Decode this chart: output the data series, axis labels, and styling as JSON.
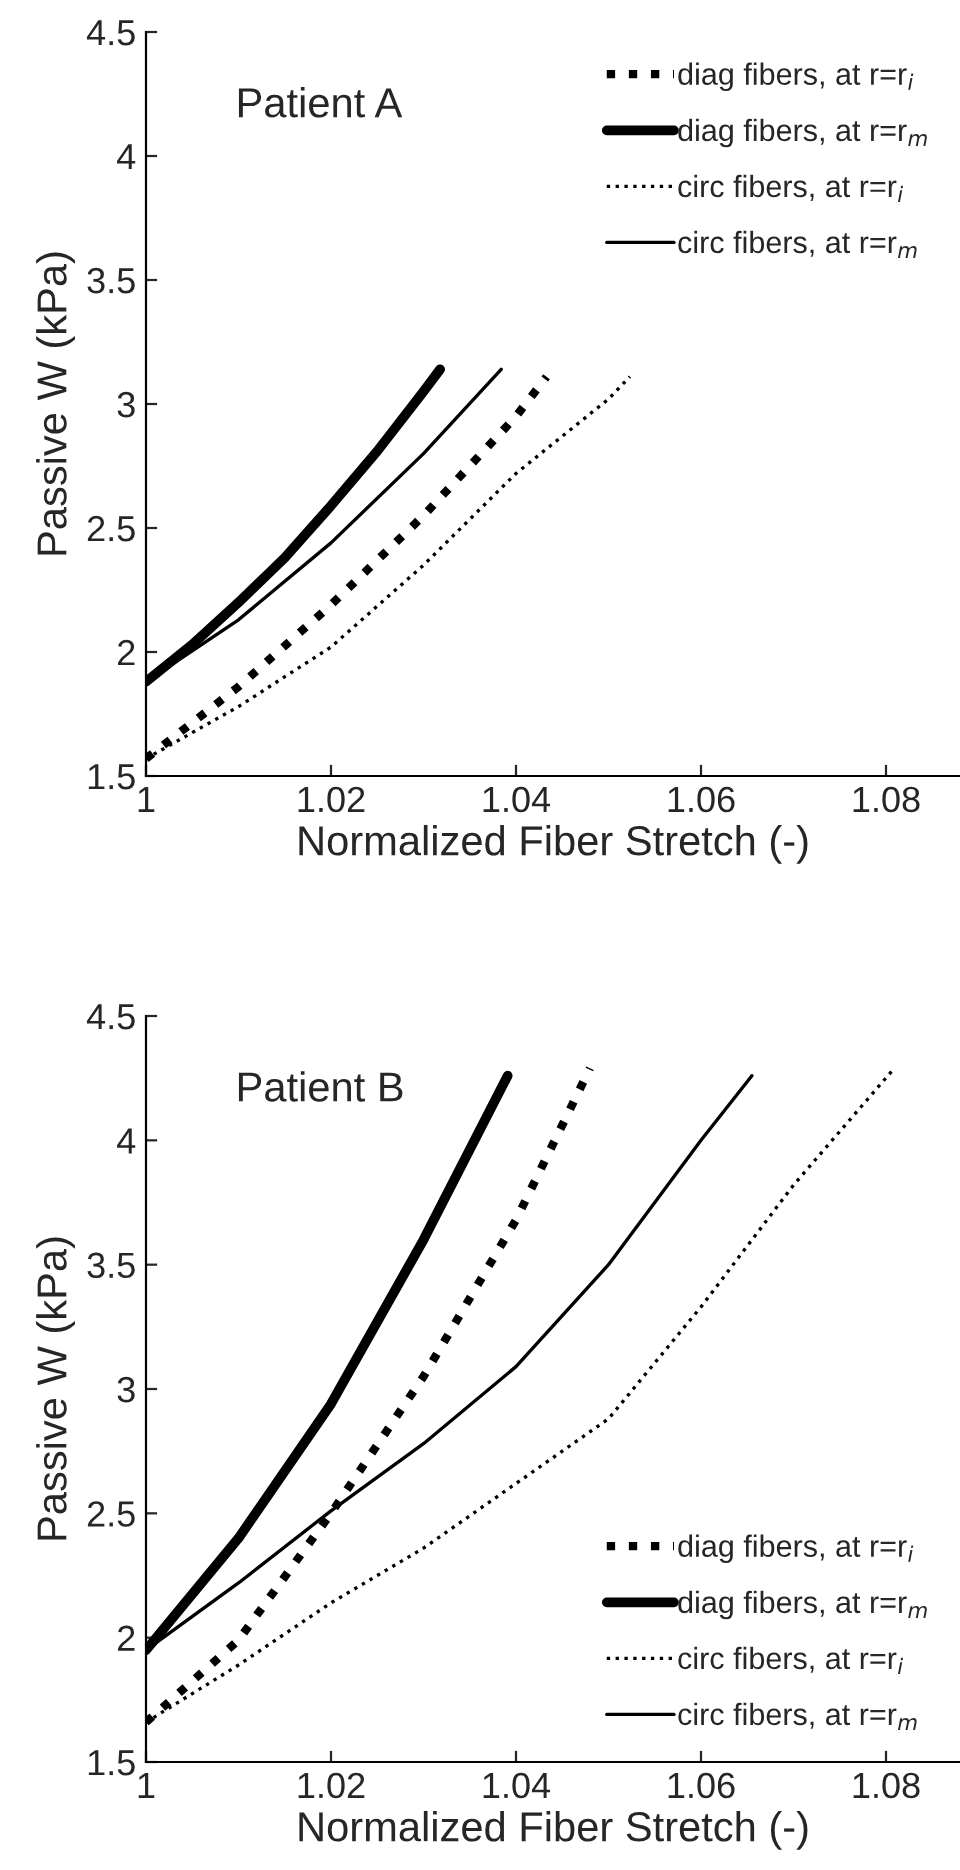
{
  "chart_data": [
    {
      "type": "line",
      "annotations": [
        "Patient A"
      ],
      "xlabel": "Normalized Fiber Stretch (-)",
      "ylabel": "Passive W (kPa)",
      "xlim": [
        1,
        1.088
      ],
      "xticks": [
        1,
        1.02,
        1.04,
        1.06,
        1.08
      ],
      "ylim": [
        1.5,
        4.5
      ],
      "yticks": [
        1.5,
        2,
        2.5,
        3,
        3.5,
        4,
        4.5
      ],
      "grid": false,
      "legend": "top right",
      "series": [
        {
          "name": "diag fibers, at r=r$_{i}$",
          "color": "#000000",
          "line_style": "dotted",
          "x": [
            1.0,
            1.01,
            1.02,
            1.03,
            1.04,
            1.0433
          ],
          "values": [
            1.57,
            1.86,
            2.19,
            2.55,
            2.95,
            3.11
          ]
        },
        {
          "name": "diag fibers, at r=r$_{m}$",
          "color": "#000000",
          "line_style": "solid",
          "x": [
            1.0,
            1.005,
            1.01,
            1.015,
            1.02,
            1.025,
            1.03,
            1.0318
          ],
          "values": [
            1.88,
            2.03,
            2.2,
            2.38,
            2.59,
            2.81,
            3.05,
            3.14
          ]
        },
        {
          "name": "circ fibers, at r=r$_{i}$",
          "color": "#000000",
          "line_style": "dotted",
          "x": [
            1.0,
            1.01,
            1.02,
            1.03,
            1.04,
            1.05,
            1.0523
          ],
          "values": [
            1.57,
            1.78,
            2.02,
            2.35,
            2.72,
            3.02,
            3.11
          ]
        },
        {
          "name": "circ fibers, at r=r$_{m}$",
          "color": "#000000",
          "line_style": "solid",
          "x": [
            1.0,
            1.01,
            1.02,
            1.03,
            1.0384
          ],
          "values": [
            1.88,
            2.13,
            2.44,
            2.8,
            3.14
          ]
        }
      ]
    },
    {
      "type": "line",
      "annotations": [
        "Patient B"
      ],
      "xlabel": "Normalized Fiber Stretch (-)",
      "ylabel": "Passive W (kPa)",
      "xlim": [
        1,
        1.088
      ],
      "xticks": [
        1,
        1.02,
        1.04,
        1.06,
        1.08
      ],
      "ylim": [
        1.5,
        4.5
      ],
      "yticks": [
        1.5,
        2,
        2.5,
        3,
        3.5,
        4,
        4.5
      ],
      "grid": false,
      "legend": "bottom right",
      "series": [
        {
          "name": "diag fibers, at r=r$_{i}$",
          "color": "#000000",
          "line_style": "dotted",
          "x": [
            1.0,
            1.01,
            1.02,
            1.03,
            1.04,
            1.048
          ],
          "values": [
            1.66,
            1.99,
            2.5,
            3.05,
            3.68,
            4.29
          ]
        },
        {
          "name": "diag fibers, at r=r$_{m}$",
          "color": "#000000",
          "line_style": "solid",
          "x": [
            1.0,
            1.01,
            1.02,
            1.03,
            1.0391
          ],
          "values": [
            1.95,
            2.4,
            2.94,
            3.6,
            4.26
          ]
        },
        {
          "name": "circ fibers, at r=r$_{i}$",
          "color": "#000000",
          "line_style": "dotted",
          "x": [
            1.0,
            1.01,
            1.02,
            1.03,
            1.04,
            1.05,
            1.06,
            1.07,
            1.0809
          ],
          "values": [
            1.66,
            1.89,
            2.14,
            2.36,
            2.62,
            2.88,
            3.33,
            3.82,
            4.29
          ]
        },
        {
          "name": "circ fibers, at r=r$_{m}$",
          "color": "#000000",
          "line_style": "solid",
          "x": [
            1.0,
            1.01,
            1.02,
            1.03,
            1.04,
            1.05,
            1.06,
            1.0655
          ],
          "values": [
            1.95,
            2.22,
            2.51,
            2.78,
            3.09,
            3.5,
            4.0,
            4.26
          ]
        }
      ]
    }
  ]
}
